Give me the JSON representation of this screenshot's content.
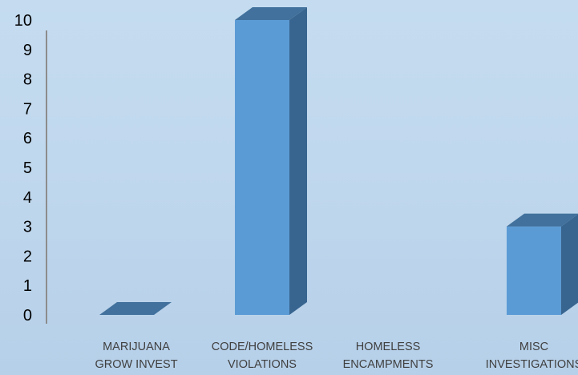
{
  "chart_data": {
    "type": "bar",
    "style": "3d-column",
    "categories": [
      [
        "MARIJUANA",
        "GROW INVEST"
      ],
      [
        "CODE/HOMELESS",
        "VIOLATIONS"
      ],
      [
        "HOMELESS",
        "ENCAMPMENTS"
      ],
      [
        "MISC",
        "INVESTIGATIONS"
      ]
    ],
    "values": [
      0,
      10,
      0,
      3
    ],
    "title": "",
    "xlabel": "",
    "ylabel": "",
    "ylim": [
      0,
      10
    ],
    "yticks": [
      0,
      1,
      2,
      3,
      4,
      5,
      6,
      7,
      8,
      9,
      10
    ],
    "grid": false,
    "legend": "none",
    "colors": {
      "front": "#5b9bd5",
      "side": "#386590",
      "top": "#41719c",
      "axis": "#8c8c8c",
      "category_text": "#404040",
      "tick_text": "#000000"
    }
  }
}
